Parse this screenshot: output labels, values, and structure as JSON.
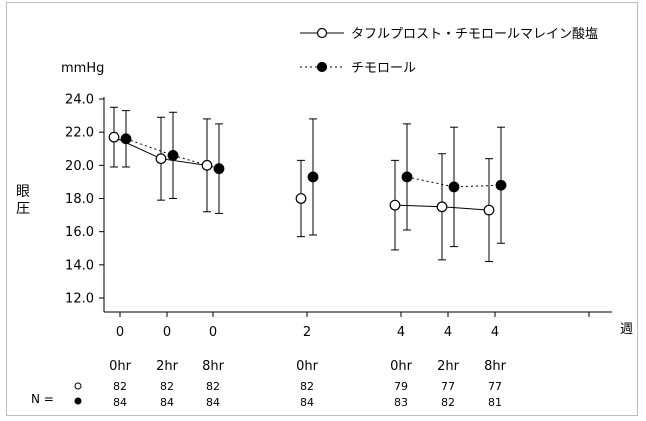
{
  "chart_data": {
    "type": "line",
    "unit_label": "mmHg",
    "ylabel": "眼圧",
    "xlabel": "週",
    "ylim": [
      12.0,
      24.0
    ],
    "y_ticks": [
      "24.0",
      "22.0",
      "20.0",
      "18.0",
      "16.0",
      "14.0",
      "12.0"
    ],
    "categories": [
      {
        "week": "0",
        "time": "0hr"
      },
      {
        "week": "0",
        "time": "2hr"
      },
      {
        "week": "0",
        "time": "8hr"
      },
      {
        "week": "2",
        "time": "0hr"
      },
      {
        "week": "4",
        "time": "0hr"
      },
      {
        "week": "4",
        "time": "2hr"
      },
      {
        "week": "4",
        "time": "8hr"
      }
    ],
    "series": [
      {
        "name": "タフルプロスト・チモロールマレイン酸塩",
        "marker": "open-circle",
        "line": "solid",
        "values": [
          21.7,
          20.4,
          20.0,
          18.0,
          17.6,
          17.5,
          17.3
        ],
        "err_low": [
          19.9,
          17.9,
          17.2,
          15.7,
          14.9,
          14.3,
          14.2
        ],
        "err_high": [
          23.5,
          22.9,
          22.8,
          20.3,
          20.3,
          20.7,
          20.4
        ],
        "n": [
          "82",
          "82",
          "82",
          "82",
          "79",
          "77",
          "77"
        ]
      },
      {
        "name": "チモロール",
        "marker": "filled-circle",
        "line": "dashed",
        "values": [
          21.6,
          20.6,
          19.8,
          19.3,
          19.3,
          18.7,
          18.8
        ],
        "err_low": [
          19.9,
          18.0,
          17.1,
          15.8,
          16.1,
          15.1,
          15.3
        ],
        "err_high": [
          23.3,
          23.2,
          22.5,
          22.8,
          22.5,
          22.3,
          22.3
        ],
        "n": [
          "84",
          "84",
          "84",
          "84",
          "83",
          "82",
          "81"
        ]
      }
    ],
    "n_label": "N =",
    "connected_groups": [
      [
        0,
        1,
        2
      ],
      [
        4,
        5,
        6
      ]
    ],
    "legend_position": "top-right",
    "colors": {
      "line": "#000000",
      "axis": "#000000",
      "frame": "#bdbdbd"
    }
  }
}
